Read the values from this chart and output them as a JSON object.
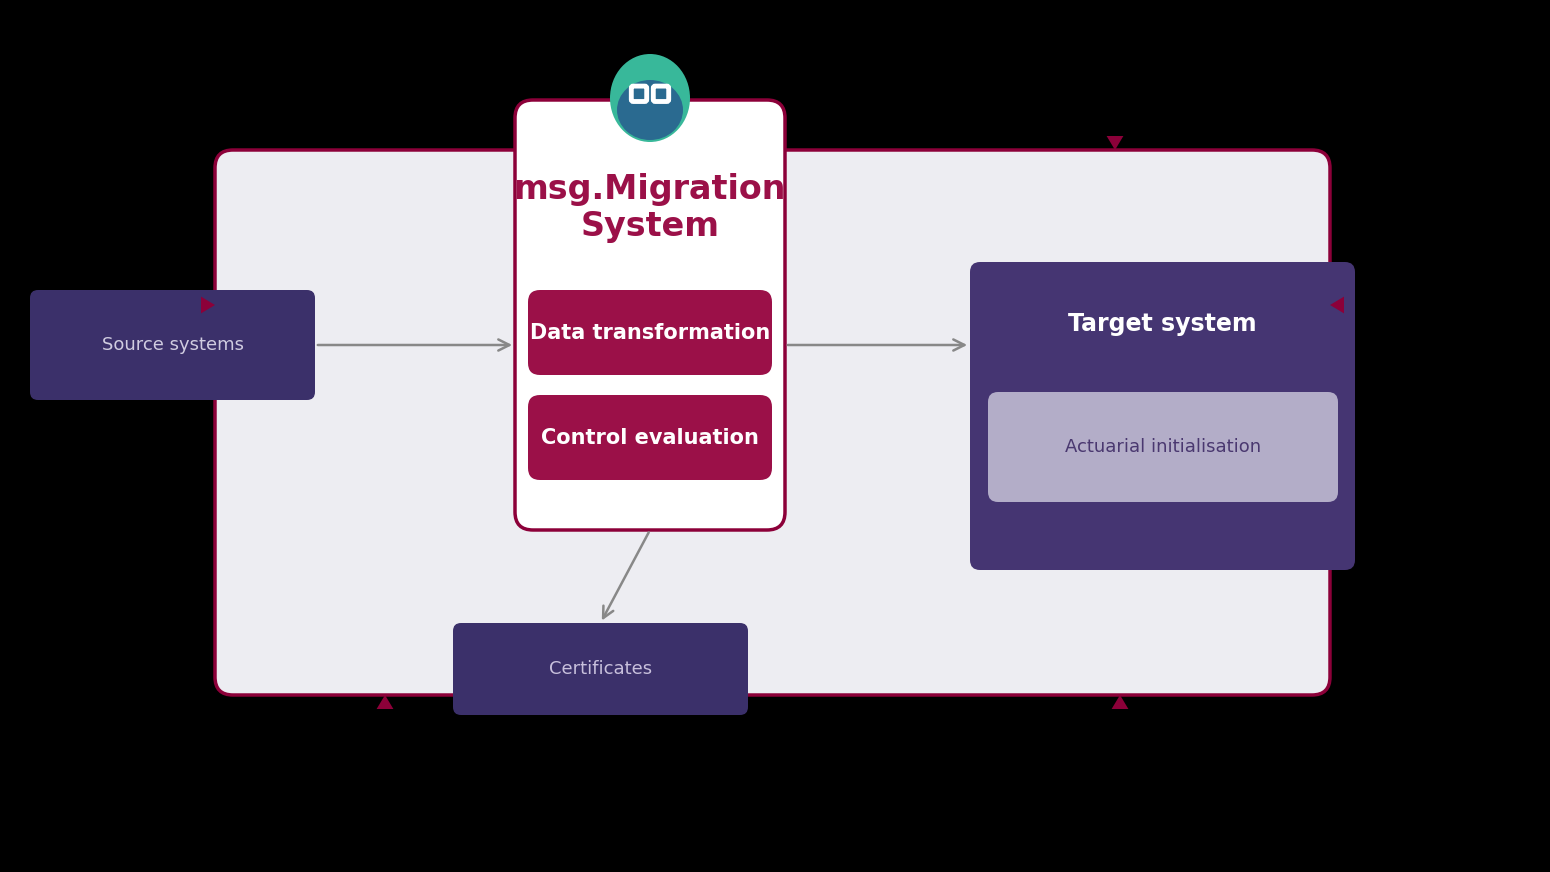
{
  "background_color": "#000000",
  "main_bg": "#ededf2",
  "main_border_color": "#8c0039",
  "center_box_bg": "#ffffff",
  "center_box_border": "#8c0039",
  "crimson_box_color": "#9b1048",
  "source_box_color": "#3b306a",
  "target_box_color": "#453572",
  "actuarial_box_color": "#b3adc8",
  "certificates_box_color": "#3b306a",
  "arrow_color": "#888888",
  "small_arrow_color": "#8c0039",
  "title_line1": "msg.Migration",
  "title_line2": "System",
  "title_color": "#9b1048",
  "title_fontsize": 24,
  "source_label": "Source systems",
  "target_label": "Target system",
  "data_transform_label": "Data transformation",
  "control_eval_label": "Control evaluation",
  "actuarial_label": "Actuarial initialisation",
  "certificates_label": "Certificates",
  "source_text_color": "#d0cce0",
  "target_text_color": "#ffffff",
  "actuarial_text_color": "#4a3870",
  "cert_text_color": "#c8c0dc",
  "logo_top_color": "#38b89a",
  "logo_bottom_color": "#2a6a90",
  "figwidth": 15.5,
  "figheight": 8.72,
  "dpi": 100
}
